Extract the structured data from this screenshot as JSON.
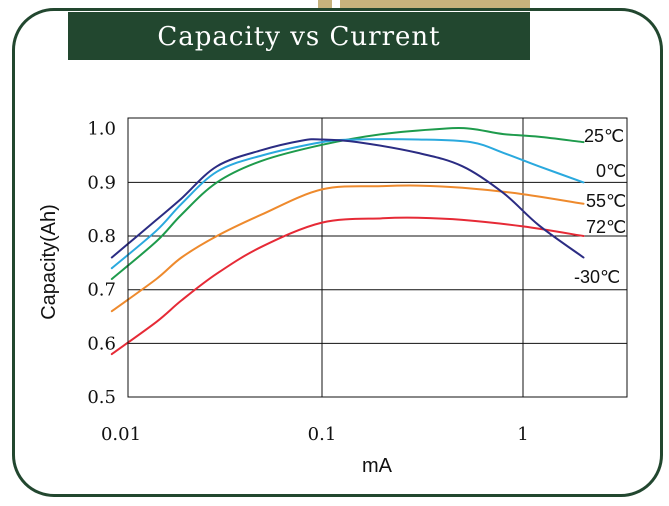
{
  "title": "Capacity vs Current",
  "colors": {
    "frame": "#22472f",
    "title_bg": "#22472f",
    "tab": "#c6b27c"
  },
  "chart_data": {
    "type": "line",
    "title": "Capacity vs Current",
    "xlabel": "mA",
    "ylabel": "Capacity(Ah)",
    "xscale": "log",
    "xlim": [
      0.008,
      2.3
    ],
    "ylim": [
      0.5,
      1.02
    ],
    "xticks": [
      0.01,
      0.1,
      1
    ],
    "xtick_labels": [
      "0.01",
      "0.1",
      "1"
    ],
    "yticks": [
      0.5,
      0.6,
      0.7,
      0.8,
      0.9,
      1.0
    ],
    "ytick_labels": [
      "0.5",
      "0.6",
      "0.7",
      "0.8",
      "0.9",
      "1.0"
    ],
    "grid": true,
    "legend": "inline-right",
    "series": [
      {
        "name": "25℃",
        "color": "#1e9b4c",
        "x": [
          0.009,
          0.015,
          0.02,
          0.03,
          0.05,
          0.1,
          0.2,
          0.4,
          0.55,
          0.8,
          1.2,
          2.0
        ],
        "y": [
          0.72,
          0.79,
          0.84,
          0.9,
          0.94,
          0.97,
          0.99,
          1.0,
          1.0,
          0.99,
          0.985,
          0.975
        ]
      },
      {
        "name": "0℃",
        "color": "#2aa9de",
        "x": [
          0.009,
          0.015,
          0.02,
          0.03,
          0.05,
          0.1,
          0.15,
          0.3,
          0.55,
          0.8,
          1.2,
          2.0
        ],
        "y": [
          0.74,
          0.81,
          0.86,
          0.92,
          0.95,
          0.975,
          0.98,
          0.98,
          0.975,
          0.955,
          0.93,
          0.9
        ]
      },
      {
        "name": "55℃",
        "color": "#ee8a2d",
        "x": [
          0.009,
          0.015,
          0.02,
          0.03,
          0.05,
          0.1,
          0.2,
          0.3,
          0.5,
          1.0,
          2.0
        ],
        "y": [
          0.66,
          0.72,
          0.76,
          0.8,
          0.84,
          0.887,
          0.893,
          0.894,
          0.89,
          0.878,
          0.86
        ]
      },
      {
        "name": "72℃",
        "color": "#e62a36",
        "x": [
          0.009,
          0.015,
          0.02,
          0.03,
          0.05,
          0.1,
          0.2,
          0.3,
          0.5,
          1.0,
          2.0
        ],
        "y": [
          0.58,
          0.64,
          0.68,
          0.73,
          0.78,
          0.825,
          0.833,
          0.834,
          0.83,
          0.818,
          0.8
        ]
      },
      {
        "name": "-30℃",
        "color": "#2b2c83",
        "x": [
          0.009,
          0.015,
          0.02,
          0.03,
          0.05,
          0.08,
          0.1,
          0.15,
          0.3,
          0.5,
          0.8,
          1.2,
          2.0
        ],
        "y": [
          0.76,
          0.83,
          0.87,
          0.93,
          0.96,
          0.978,
          0.98,
          0.975,
          0.955,
          0.93,
          0.88,
          0.82,
          0.76
        ]
      }
    ]
  }
}
